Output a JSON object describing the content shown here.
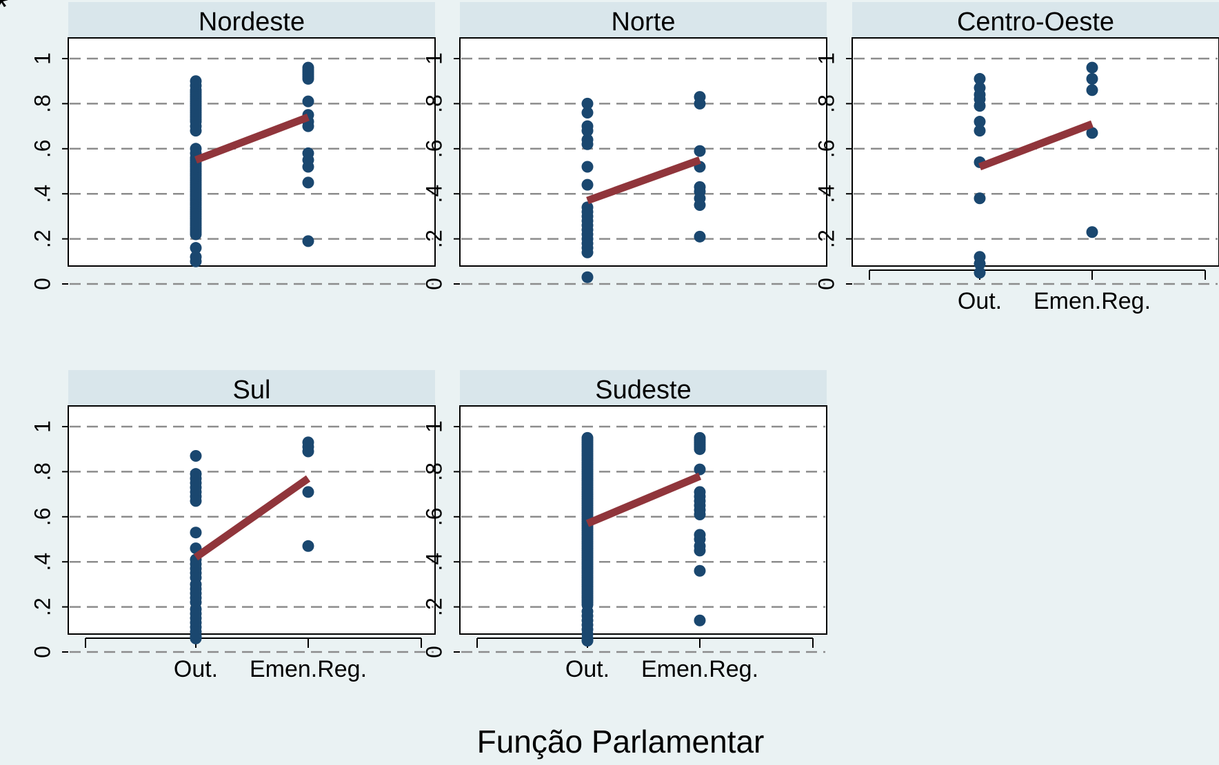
{
  "colors": {
    "background": "#eaf2f3",
    "panel_bg": "#ffffff",
    "strip_bg": "#d9e6eb",
    "grid": "#8c8c8c",
    "points": "#1a476f",
    "fit_line": "#90353b",
    "text": "#000000"
  },
  "corner_glyph": "*",
  "xlabel": "Função Parlamentar",
  "chart_data": {
    "type": "scatter",
    "title": "",
    "xlabel": "Função Parlamentar",
    "ylabel": "",
    "ylim": [
      0,
      1
    ],
    "y_ticks": [
      0,
      0.2,
      0.4,
      0.6,
      0.8,
      1
    ],
    "y_tick_labels": [
      "0",
      ".2",
      ".4",
      ".6",
      ".8",
      "1"
    ],
    "x_categories": [
      "Out.",
      "Emen.Reg."
    ],
    "grid": true,
    "panels": [
      {
        "name": "Nordeste",
        "show_x_labels": false,
        "points": {
          "Out.": [
            0.9,
            0.88,
            0.86,
            0.85,
            0.84,
            0.83,
            0.82,
            0.81,
            0.8,
            0.79,
            0.78,
            0.77,
            0.76,
            0.75,
            0.74,
            0.73,
            0.72,
            0.7,
            0.68,
            0.6,
            0.58,
            0.56,
            0.55,
            0.54,
            0.53,
            0.52,
            0.51,
            0.5,
            0.49,
            0.48,
            0.47,
            0.46,
            0.45,
            0.44,
            0.43,
            0.42,
            0.41,
            0.4,
            0.39,
            0.38,
            0.37,
            0.36,
            0.35,
            0.34,
            0.33,
            0.32,
            0.31,
            0.3,
            0.29,
            0.28,
            0.27,
            0.26,
            0.25,
            0.24,
            0.23,
            0.22,
            0.16,
            0.12,
            0.1
          ],
          "Emen.Reg.": [
            0.96,
            0.95,
            0.94,
            0.93,
            0.92,
            0.91,
            0.81,
            0.75,
            0.72,
            0.7,
            0.58,
            0.55,
            0.52,
            0.45,
            0.19
          ]
        },
        "fit": [
          0.55,
          0.74
        ]
      },
      {
        "name": "Norte",
        "show_x_labels": false,
        "points": {
          "Out.": [
            0.8,
            0.76,
            0.7,
            0.68,
            0.64,
            0.62,
            0.52,
            0.44,
            0.34,
            0.32,
            0.3,
            0.28,
            0.26,
            0.24,
            0.22,
            0.2,
            0.18,
            0.16,
            0.14,
            0.03
          ],
          "Emen.Reg.": [
            0.83,
            0.8,
            0.59,
            0.52,
            0.43,
            0.41,
            0.38,
            0.35,
            0.21
          ]
        },
        "fit": [
          0.37,
          0.55
        ]
      },
      {
        "name": "Centro-Oeste",
        "show_x_labels": true,
        "points": {
          "Out.": [
            0.91,
            0.87,
            0.84,
            0.82,
            0.79,
            0.72,
            0.68,
            0.54,
            0.38,
            0.12,
            0.09,
            0.05
          ],
          "Emen.Reg.": [
            0.96,
            0.91,
            0.86,
            0.67,
            0.23
          ]
        },
        "fit": [
          0.52,
          0.71
        ]
      },
      {
        "name": "Sul",
        "show_x_labels": true,
        "points": {
          "Out.": [
            0.87,
            0.79,
            0.77,
            0.75,
            0.73,
            0.71,
            0.69,
            0.67,
            0.53,
            0.46,
            0.41,
            0.39,
            0.37,
            0.35,
            0.33,
            0.3,
            0.28,
            0.26,
            0.24,
            0.22,
            0.19,
            0.17,
            0.15,
            0.13,
            0.11,
            0.09,
            0.07,
            0.06
          ],
          "Emen.Reg.": [
            0.93,
            0.91,
            0.89,
            0.71,
            0.47
          ]
        },
        "fit": [
          0.42,
          0.77
        ]
      },
      {
        "name": "Sudeste",
        "show_x_labels": true,
        "points": {
          "Out.": [
            0.95,
            0.94,
            0.93,
            0.92,
            0.91,
            0.9,
            0.89,
            0.88,
            0.87,
            0.86,
            0.85,
            0.84,
            0.83,
            0.82,
            0.81,
            0.8,
            0.79,
            0.78,
            0.77,
            0.76,
            0.75,
            0.74,
            0.73,
            0.72,
            0.71,
            0.7,
            0.69,
            0.68,
            0.67,
            0.66,
            0.65,
            0.64,
            0.63,
            0.62,
            0.61,
            0.6,
            0.59,
            0.58,
            0.57,
            0.56,
            0.55,
            0.54,
            0.53,
            0.52,
            0.51,
            0.5,
            0.49,
            0.48,
            0.47,
            0.46,
            0.45,
            0.44,
            0.43,
            0.42,
            0.41,
            0.4,
            0.39,
            0.38,
            0.37,
            0.36,
            0.35,
            0.34,
            0.33,
            0.32,
            0.31,
            0.3,
            0.29,
            0.28,
            0.27,
            0.26,
            0.25,
            0.24,
            0.23,
            0.22,
            0.21,
            0.18,
            0.16,
            0.14,
            0.12,
            0.1,
            0.08,
            0.06,
            0.05
          ],
          "Emen.Reg.": [
            0.95,
            0.94,
            0.93,
            0.92,
            0.91,
            0.9,
            0.81,
            0.71,
            0.69,
            0.67,
            0.65,
            0.63,
            0.61,
            0.52,
            0.5,
            0.47,
            0.45,
            0.36,
            0.14
          ]
        },
        "fit": [
          0.57,
          0.78
        ]
      }
    ]
  }
}
